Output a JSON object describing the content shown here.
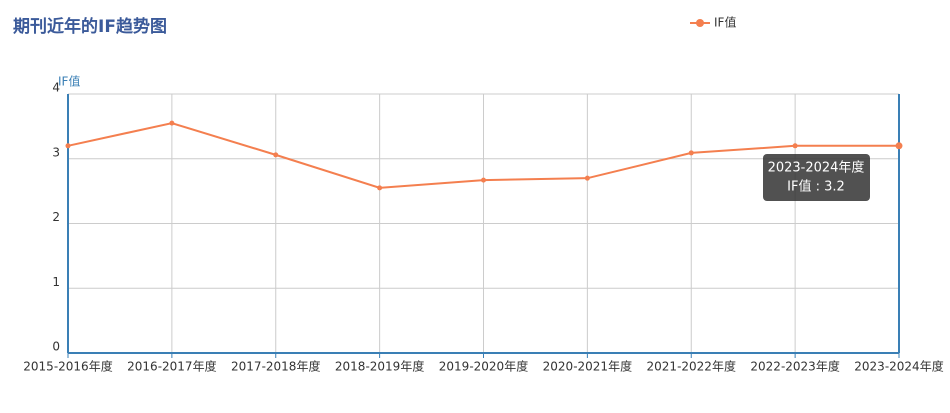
{
  "chart_data": {
    "type": "line",
    "title": "期刊近年的IF趋势图",
    "y_label": "IF值",
    "categories": [
      "2015-2016年度",
      "2016-2017年度",
      "2017-2018年度",
      "2018-2019年度",
      "2019-2020年度",
      "2020-2021年度",
      "2021-2022年度",
      "2022-2023年度",
      "2023-2024年度"
    ],
    "series": [
      {
        "name": "IF值",
        "color": "#f47f4f",
        "values": [
          3.2,
          3.55,
          3.06,
          2.55,
          2.67,
          2.7,
          3.09,
          3.2,
          3.2
        ]
      }
    ],
    "ylim": [
      0,
      4
    ],
    "yticks": [
      0,
      1,
      2,
      3,
      4
    ],
    "grid": true,
    "legend": "top-right",
    "tooltip": {
      "title": "2023-2024年度",
      "text": "IF值 : 3.2"
    }
  }
}
